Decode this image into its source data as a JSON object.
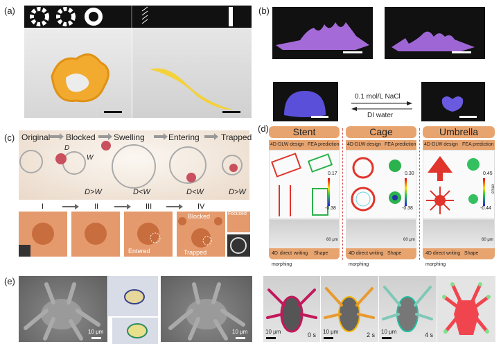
{
  "panels": {
    "a": {
      "label": "(a)"
    },
    "b": {
      "label": "(b)",
      "arrow_forward": "0.1 mol/L NaCl",
      "arrow_backward": "DI water"
    },
    "c": {
      "label": "(c)",
      "stages": [
        "Original",
        "Blocked",
        "Swelling",
        "Entering",
        "Trapped"
      ],
      "symbols": {
        "d": "D",
        "w": "W"
      },
      "conditions": [
        "D>W",
        "D<W",
        "D<W",
        "D>W"
      ],
      "steps": [
        "I",
        "II",
        "III",
        "IV"
      ],
      "annotations": {
        "blocked": "Blocked",
        "entered": "Entered",
        "trapped": "Trapped",
        "focused": "Focused"
      }
    },
    "d": {
      "label": "(d)",
      "columns": [
        {
          "title": "Stent",
          "design": "4D-DLW design",
          "prediction": "FEA prediction",
          "scale_max": "0.17",
          "scale_min": "-0.38",
          "scalebar": "60 μm",
          "writing": "4D direct writing",
          "morphing": "Shape morphing"
        },
        {
          "title": "Cage",
          "design": "4D-DLW design",
          "prediction": "FEA prediction",
          "scale_max": "0.30",
          "scale_min": "-0.38",
          "scalebar": "60 μm",
          "writing": "4D direct writing",
          "morphing": "Shape morphing"
        },
        {
          "title": "Umbrella",
          "design": "4D-DLW design",
          "prediction": "FEA prediction",
          "scale_max": "0.45",
          "scale_min": "-0.44",
          "scalebar": "60 μm",
          "writing": "4D direct writing",
          "morphing": "Shape morphing"
        }
      ],
      "colorbar_label": "εmax"
    },
    "e": {
      "label": "(e)",
      "sem_scalebars": [
        "10 μm",
        "10 μm"
      ],
      "frames": [
        {
          "scalebar": "10 μm",
          "time": "0 s",
          "outline": "#c2185b"
        },
        {
          "scalebar": "10 μm",
          "time": "2 s",
          "outline": "#f5b400"
        },
        {
          "scalebar": "10 μm",
          "time": "4 s",
          "outline": "#1fbfa0"
        }
      ],
      "model_color": "#f0454f"
    }
  }
}
